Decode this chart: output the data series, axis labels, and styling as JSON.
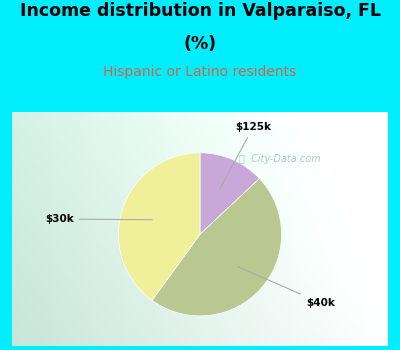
{
  "title_line1": "Income distribution in Valparaiso, FL",
  "title_line2": "(%)",
  "subtitle": "Hispanic or Latino residents",
  "subtitle_color": "#cc6644",
  "top_bg": "#00eeff",
  "slices": [
    {
      "label": "$125k",
      "value": 13,
      "color": "#c8a8d8"
    },
    {
      "label": "$40k",
      "value": 47,
      "color": "#b8c890"
    },
    {
      "label": "$30k",
      "value": 40,
      "color": "#f0f09a"
    }
  ],
  "startangle": 90,
  "figsize": [
    4.0,
    3.5
  ],
  "dpi": 100,
  "title_fontsize": 12.5,
  "subtitle_fontsize": 10
}
